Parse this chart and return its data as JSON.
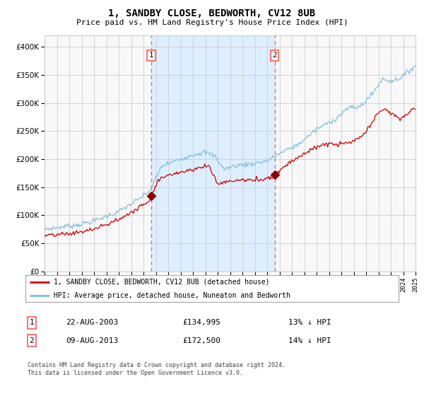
{
  "title": "1, SANDBY CLOSE, BEDWORTH, CV12 8UB",
  "subtitle": "Price paid vs. HM Land Registry's House Price Index (HPI)",
  "legend_line1": "1, SANDBY CLOSE, BEDWORTH, CV12 8UB (detached house)",
  "legend_line2": "HPI: Average price, detached house, Nuneaton and Bedworth",
  "sale1_date": "22-AUG-2003",
  "sale1_price": 134995,
  "sale1_hpi_diff": "13% ↓ HPI",
  "sale2_date": "09-AUG-2013",
  "sale2_price": 172500,
  "sale2_hpi_diff": "14% ↓ HPI",
  "footnote": "Contains HM Land Registry data © Crown copyright and database right 2024.\nThis data is licensed under the Open Government Licence v3.0.",
  "hpi_color": "#7fbfdf",
  "price_color": "#cc0000",
  "marker_color": "#8b0000",
  "vline_color": "#ff6666",
  "shade_color": "#ddeeff",
  "grid_color": "#cccccc",
  "bg_color": "#f8f8f8",
  "ylim": [
    0,
    420000
  ],
  "yticks": [
    0,
    50000,
    100000,
    150000,
    200000,
    250000,
    300000,
    350000,
    400000
  ],
  "sale1_year": 2003.64,
  "sale2_year": 2013.6,
  "xstart": 1995.0,
  "xend": 2025.0
}
